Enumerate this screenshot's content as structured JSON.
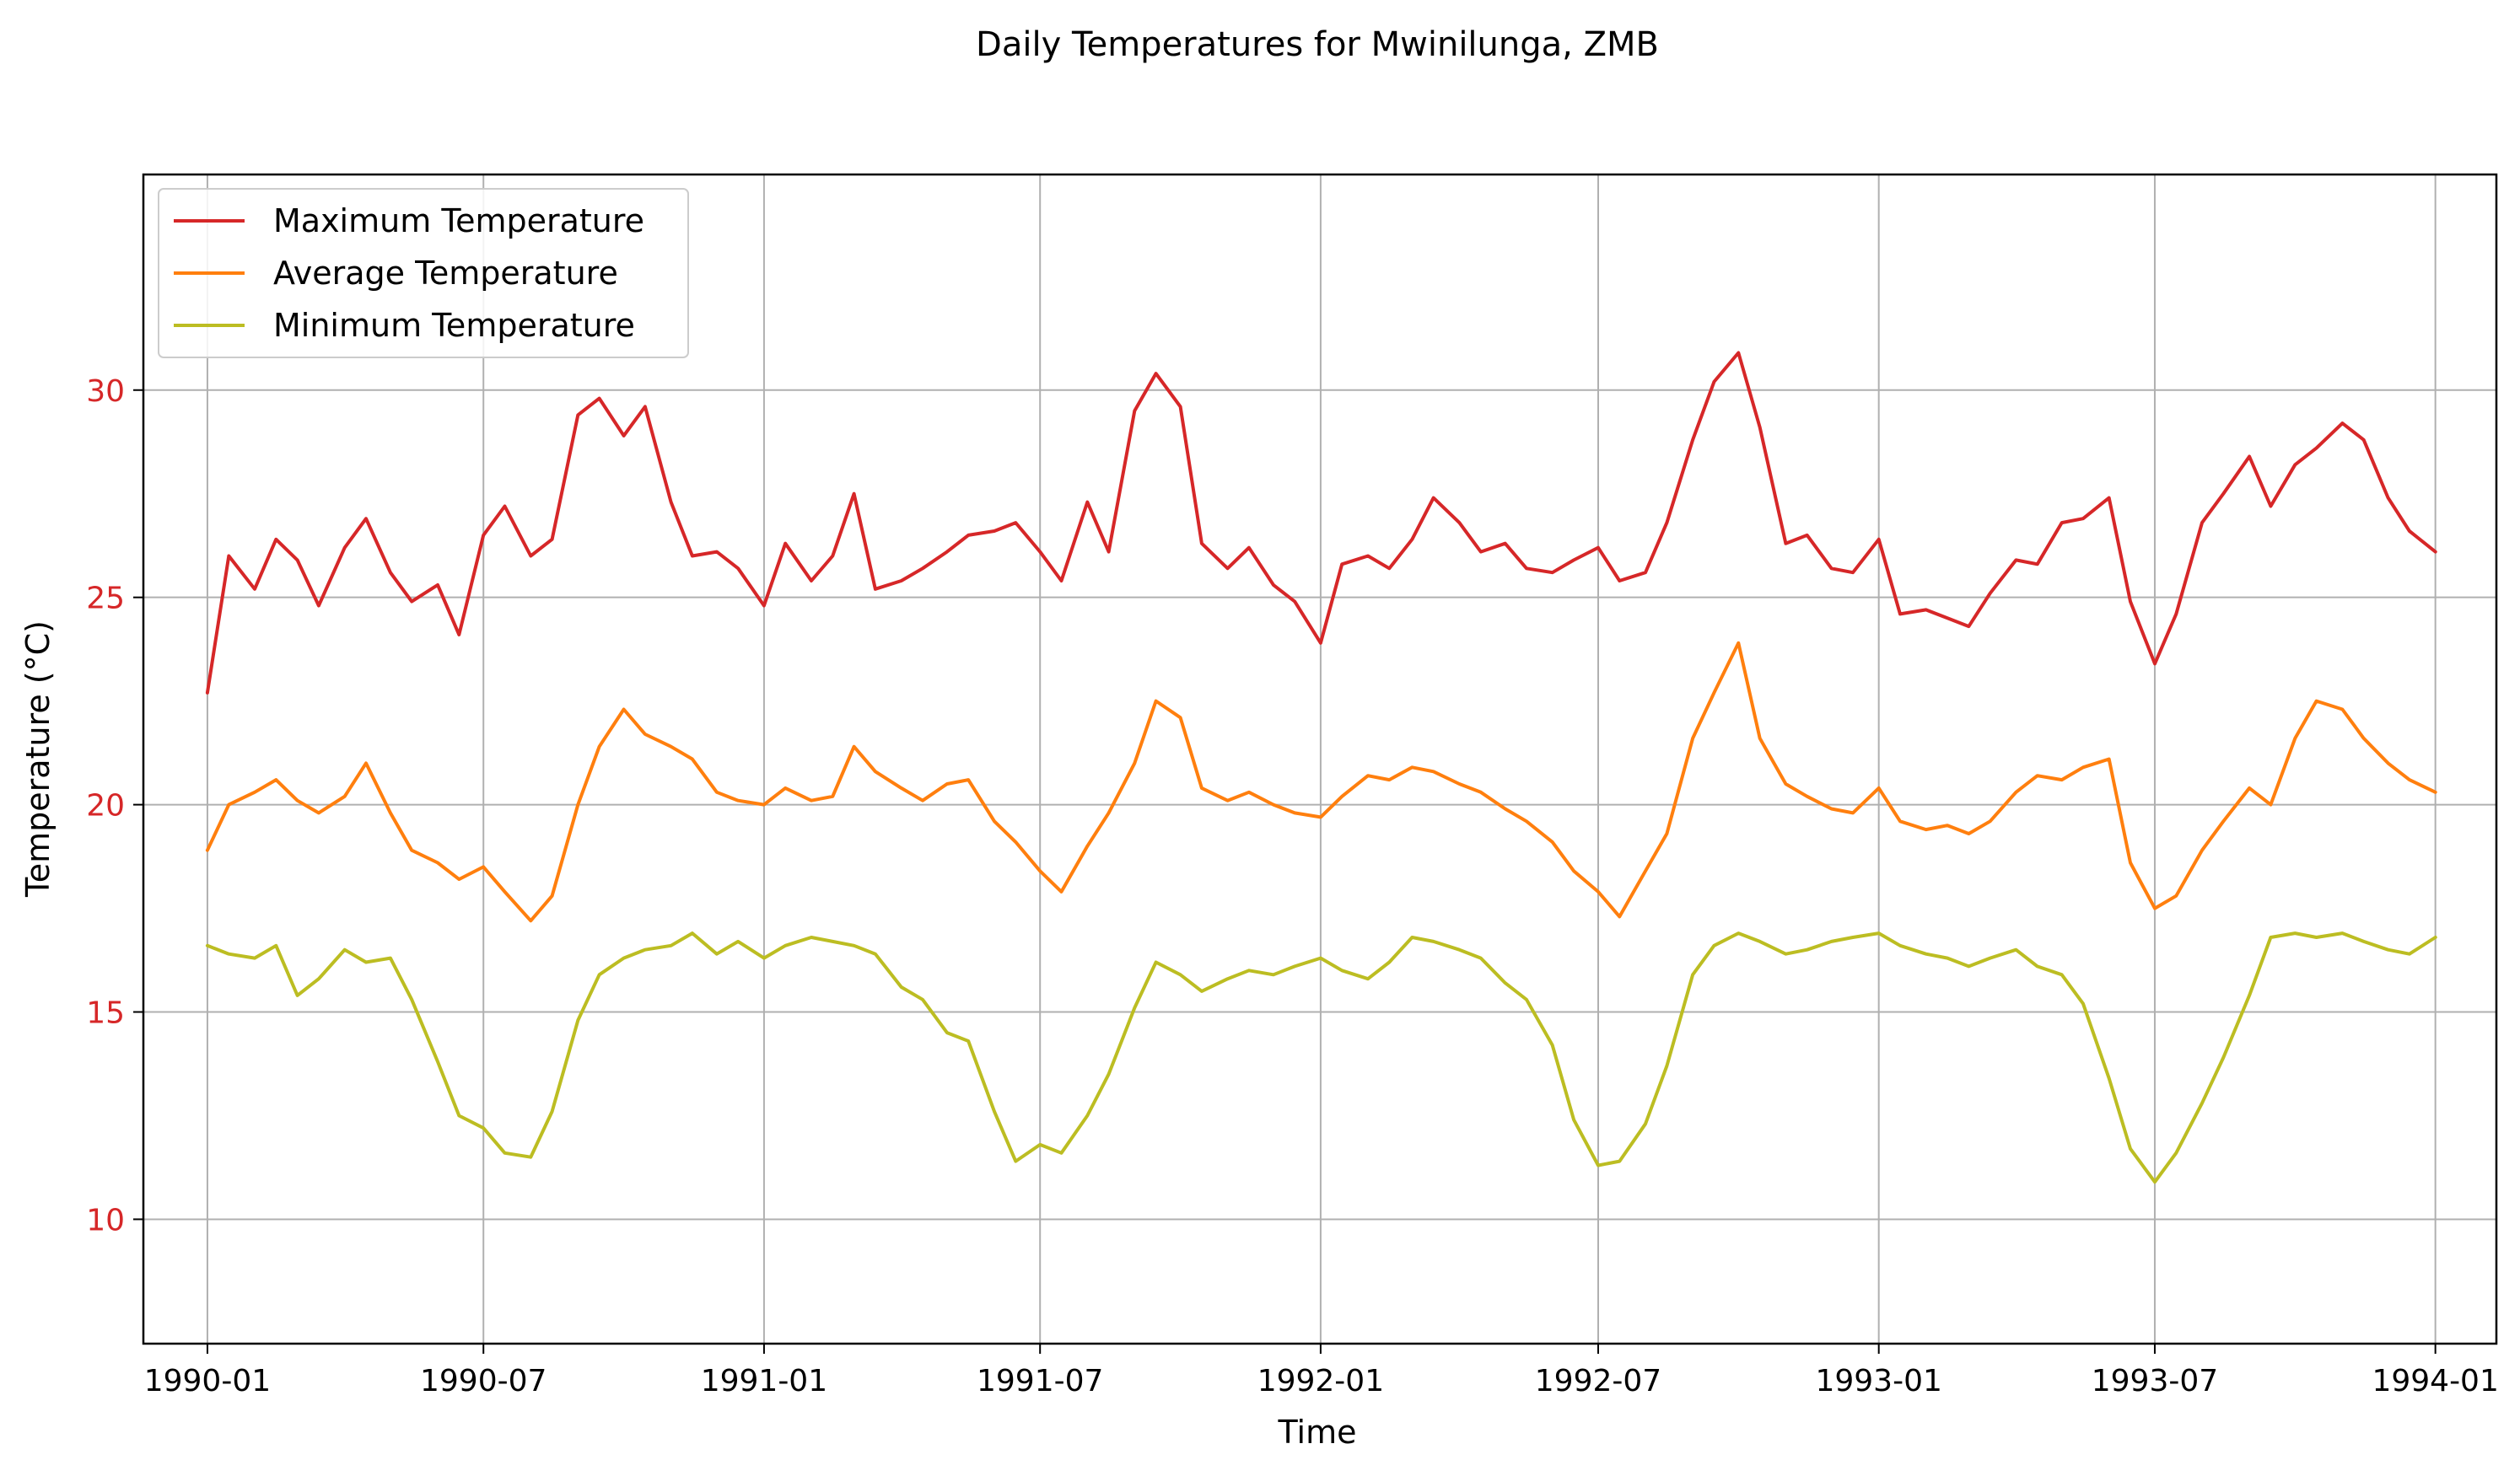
{
  "chart_data": {
    "type": "line",
    "title": "Daily Temperatures for Mwinilunga, ZMB",
    "xlabel": "Time",
    "ylabel": "Temperature (°C)",
    "x_range": [
      "1989-11-20",
      "1994-02-10"
    ],
    "ylim": [
      7.0,
      35.2
    ],
    "x_ticks": [
      "1990-01",
      "1990-07",
      "1991-01",
      "1991-07",
      "1992-01",
      "1992-07",
      "1993-01",
      "1993-07",
      "1994-01"
    ],
    "y_ticks": [
      10,
      15,
      20,
      25,
      30
    ],
    "y_tick_color": "#d62728",
    "grid": true,
    "legend_position": "top-left",
    "series": [
      {
        "name": "Maximum Temperature",
        "color": "#d62728",
        "x": [
          "1990-01-01",
          "1990-01-15",
          "1990-02-01",
          "1990-02-15",
          "1990-03-01",
          "1990-03-15",
          "1990-04-01",
          "1990-04-15",
          "1990-05-01",
          "1990-05-15",
          "1990-06-01",
          "1990-06-15",
          "1990-07-01",
          "1990-07-15",
          "1990-08-01",
          "1990-08-15",
          "1990-09-01",
          "1990-09-15",
          "1990-10-01",
          "1990-10-15",
          "1990-11-01",
          "1990-11-15",
          "1990-12-01",
          "1990-12-15",
          "1991-01-01",
          "1991-01-15",
          "1991-02-01",
          "1991-02-15",
          "1991-03-01",
          "1991-03-15",
          "1991-04-01",
          "1991-04-15",
          "1991-05-01",
          "1991-05-15",
          "1991-06-01",
          "1991-06-15",
          "1991-07-01",
          "1991-07-15",
          "1991-08-01",
          "1991-08-15",
          "1991-09-01",
          "1991-09-15",
          "1991-10-01",
          "1991-10-15",
          "1991-11-01",
          "1991-11-15",
          "1991-12-01",
          "1991-12-15",
          "1992-01-01",
          "1992-01-15",
          "1992-02-01",
          "1992-02-15",
          "1992-03-01",
          "1992-03-15",
          "1992-04-01",
          "1992-04-15",
          "1992-05-01",
          "1992-05-15",
          "1992-06-01",
          "1992-06-15",
          "1992-07-01",
          "1992-07-15",
          "1992-08-01",
          "1992-08-15",
          "1992-09-01",
          "1992-09-15",
          "1992-10-01",
          "1992-10-15",
          "1992-11-01",
          "1992-11-15",
          "1992-12-01",
          "1992-12-15",
          "1993-01-01",
          "1993-01-15",
          "1993-02-01",
          "1993-02-15",
          "1993-03-01",
          "1993-03-15",
          "1993-04-01",
          "1993-04-15",
          "1993-05-01",
          "1993-05-15",
          "1993-06-01",
          "1993-06-15",
          "1993-07-01",
          "1993-07-15",
          "1993-08-01",
          "1993-08-15",
          "1993-09-01",
          "1993-09-15",
          "1993-10-01",
          "1993-10-15",
          "1993-11-01",
          "1993-11-15",
          "1993-12-01",
          "1993-12-15",
          "1994-01-01"
        ],
        "values": [
          22.7,
          26.0,
          25.2,
          26.4,
          25.9,
          24.8,
          26.2,
          26.9,
          25.6,
          24.9,
          25.3,
          24.1,
          26.5,
          27.2,
          26.0,
          26.4,
          29.4,
          29.8,
          28.9,
          29.6,
          27.3,
          26.0,
          26.1,
          25.7,
          24.8,
          26.3,
          25.4,
          26.0,
          27.5,
          25.2,
          25.4,
          25.7,
          26.1,
          26.5,
          26.6,
          26.8,
          26.1,
          25.4,
          27.3,
          26.1,
          29.5,
          30.4,
          29.6,
          26.3,
          25.7,
          26.2,
          25.3,
          24.9,
          23.9,
          25.8,
          26.0,
          25.7,
          26.4,
          27.4,
          26.8,
          26.1,
          26.3,
          25.7,
          25.6,
          25.9,
          26.2,
          25.4,
          25.6,
          26.8,
          28.8,
          30.2,
          30.9,
          29.1,
          26.3,
          26.5,
          25.7,
          25.6,
          26.4,
          24.6,
          24.7,
          24.5,
          24.3,
          25.1,
          25.9,
          25.8,
          26.8,
          26.9,
          27.4,
          24.9,
          23.4,
          24.6,
          26.8,
          27.5,
          28.4,
          27.2,
          28.2,
          28.6,
          29.2,
          28.8,
          27.4,
          26.6,
          26.1
        ]
      },
      {
        "name": "Average Temperature",
        "color": "#ff7f0e",
        "x": [
          "1990-01-01",
          "1990-01-15",
          "1990-02-01",
          "1990-02-15",
          "1990-03-01",
          "1990-03-15",
          "1990-04-01",
          "1990-04-15",
          "1990-05-01",
          "1990-05-15",
          "1990-06-01",
          "1990-06-15",
          "1990-07-01",
          "1990-07-15",
          "1990-08-01",
          "1990-08-15",
          "1990-09-01",
          "1990-09-15",
          "1990-10-01",
          "1990-10-15",
          "1990-11-01",
          "1990-11-15",
          "1990-12-01",
          "1990-12-15",
          "1991-01-01",
          "1991-01-15",
          "1991-02-01",
          "1991-02-15",
          "1991-03-01",
          "1991-03-15",
          "1991-04-01",
          "1991-04-15",
          "1991-05-01",
          "1991-05-15",
          "1991-06-01",
          "1991-06-15",
          "1991-07-01",
          "1991-07-15",
          "1991-08-01",
          "1991-08-15",
          "1991-09-01",
          "1991-09-15",
          "1991-10-01",
          "1991-10-15",
          "1991-11-01",
          "1991-11-15",
          "1991-12-01",
          "1991-12-15",
          "1992-01-01",
          "1992-01-15",
          "1992-02-01",
          "1992-02-15",
          "1992-03-01",
          "1992-03-15",
          "1992-04-01",
          "1992-04-15",
          "1992-05-01",
          "1992-05-15",
          "1992-06-01",
          "1992-06-15",
          "1992-07-01",
          "1992-07-15",
          "1992-08-01",
          "1992-08-15",
          "1992-09-01",
          "1992-09-15",
          "1992-10-01",
          "1992-10-15",
          "1992-11-01",
          "1992-11-15",
          "1992-12-01",
          "1992-12-15",
          "1993-01-01",
          "1993-01-15",
          "1993-02-01",
          "1993-02-15",
          "1993-03-01",
          "1993-03-15",
          "1993-04-01",
          "1993-04-15",
          "1993-05-01",
          "1993-05-15",
          "1993-06-01",
          "1993-06-15",
          "1993-07-01",
          "1993-07-15",
          "1993-08-01",
          "1993-08-15",
          "1993-09-01",
          "1993-09-15",
          "1993-10-01",
          "1993-10-15",
          "1993-11-01",
          "1993-11-15",
          "1993-12-01",
          "1993-12-15",
          "1994-01-01"
        ],
        "values": [
          18.9,
          20.0,
          20.3,
          20.6,
          20.1,
          19.8,
          20.2,
          21.0,
          19.8,
          18.9,
          18.6,
          18.2,
          18.5,
          17.9,
          17.2,
          17.8,
          20.0,
          21.4,
          22.3,
          21.7,
          21.4,
          21.1,
          20.3,
          20.1,
          20.0,
          20.4,
          20.1,
          20.2,
          21.4,
          20.8,
          20.4,
          20.1,
          20.5,
          20.6,
          19.6,
          19.1,
          18.4,
          17.9,
          19.0,
          19.8,
          21.0,
          22.5,
          22.1,
          20.4,
          20.1,
          20.3,
          20.0,
          19.8,
          19.7,
          20.2,
          20.7,
          20.6,
          20.9,
          20.8,
          20.5,
          20.3,
          19.9,
          19.6,
          19.1,
          18.4,
          17.9,
          17.3,
          18.4,
          19.3,
          21.6,
          22.7,
          23.9,
          21.6,
          20.5,
          20.2,
          19.9,
          19.8,
          20.4,
          19.6,
          19.4,
          19.5,
          19.3,
          19.6,
          20.3,
          20.7,
          20.6,
          20.9,
          21.1,
          18.6,
          17.5,
          17.8,
          18.9,
          19.6,
          20.4,
          20.0,
          21.6,
          22.5,
          22.3,
          21.6,
          21.0,
          20.6,
          20.3
        ]
      },
      {
        "name": "Minimum Temperature",
        "color": "#bcbd22",
        "x": [
          "1990-01-01",
          "1990-01-15",
          "1990-02-01",
          "1990-02-15",
          "1990-03-01",
          "1990-03-15",
          "1990-04-01",
          "1990-04-15",
          "1990-05-01",
          "1990-05-15",
          "1990-06-01",
          "1990-06-15",
          "1990-07-01",
          "1990-07-15",
          "1990-08-01",
          "1990-08-15",
          "1990-09-01",
          "1990-09-15",
          "1990-10-01",
          "1990-10-15",
          "1990-11-01",
          "1990-11-15",
          "1990-12-01",
          "1990-12-15",
          "1991-01-01",
          "1991-01-15",
          "1991-02-01",
          "1991-02-15",
          "1991-03-01",
          "1991-03-15",
          "1991-04-01",
          "1991-04-15",
          "1991-05-01",
          "1991-05-15",
          "1991-06-01",
          "1991-06-15",
          "1991-07-01",
          "1991-07-15",
          "1991-08-01",
          "1991-08-15",
          "1991-09-01",
          "1991-09-15",
          "1991-10-01",
          "1991-10-15",
          "1991-11-01",
          "1991-11-15",
          "1991-12-01",
          "1991-12-15",
          "1992-01-01",
          "1992-01-15",
          "1992-02-01",
          "1992-02-15",
          "1992-03-01",
          "1992-03-15",
          "1992-04-01",
          "1992-04-15",
          "1992-05-01",
          "1992-05-15",
          "1992-06-01",
          "1992-06-15",
          "1992-07-01",
          "1992-07-15",
          "1992-08-01",
          "1992-08-15",
          "1992-09-01",
          "1992-09-15",
          "1992-10-01",
          "1992-10-15",
          "1992-11-01",
          "1992-11-15",
          "1992-12-01",
          "1992-12-15",
          "1993-01-01",
          "1993-01-15",
          "1993-02-01",
          "1993-02-15",
          "1993-03-01",
          "1993-03-15",
          "1993-04-01",
          "1993-04-15",
          "1993-05-01",
          "1993-05-15",
          "1993-06-01",
          "1993-06-15",
          "1993-07-01",
          "1993-07-15",
          "1993-08-01",
          "1993-08-15",
          "1993-09-01",
          "1993-09-15",
          "1993-10-01",
          "1993-10-15",
          "1993-11-01",
          "1993-11-15",
          "1993-12-01",
          "1993-12-15",
          "1994-01-01"
        ],
        "values": [
          16.6,
          16.4,
          16.3,
          16.6,
          15.4,
          15.8,
          16.5,
          16.2,
          16.3,
          15.3,
          13.8,
          12.5,
          12.2,
          11.6,
          11.5,
          12.6,
          14.8,
          15.9,
          16.3,
          16.5,
          16.6,
          16.9,
          16.4,
          16.7,
          16.3,
          16.6,
          16.8,
          16.7,
          16.6,
          16.4,
          15.6,
          15.3,
          14.5,
          14.3,
          12.6,
          11.4,
          11.8,
          11.6,
          12.5,
          13.5,
          15.1,
          16.2,
          15.9,
          15.5,
          15.8,
          16.0,
          15.9,
          16.1,
          16.3,
          16.0,
          15.8,
          16.2,
          16.8,
          16.7,
          16.5,
          16.3,
          15.7,
          15.3,
          14.2,
          12.4,
          11.3,
          11.4,
          12.3,
          13.7,
          15.9,
          16.6,
          16.9,
          16.7,
          16.4,
          16.5,
          16.7,
          16.8,
          16.9,
          16.6,
          16.4,
          16.3,
          16.1,
          16.3,
          16.5,
          16.1,
          15.9,
          15.2,
          13.4,
          11.7,
          10.9,
          11.6,
          12.8,
          13.9,
          15.4,
          16.8,
          16.9,
          16.8,
          16.9,
          16.7,
          16.5,
          16.4,
          16.8
        ]
      }
    ]
  }
}
